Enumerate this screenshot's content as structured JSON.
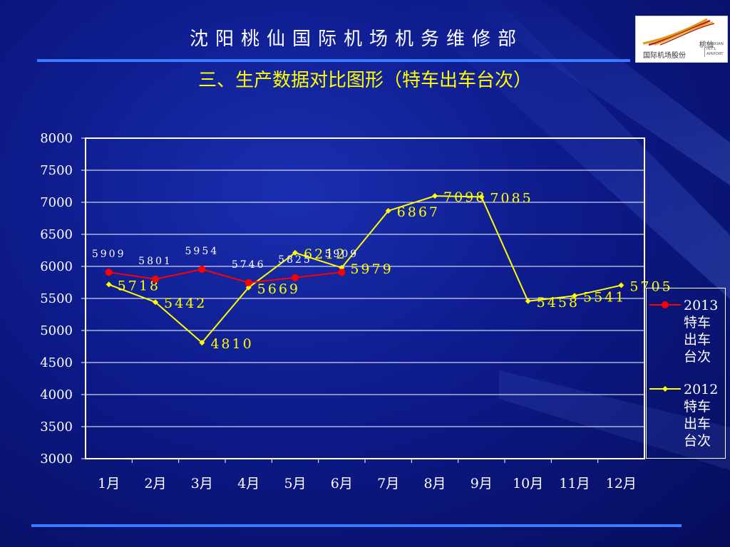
{
  "header": {
    "title": "沈阳桃仙国际机场机务维修部",
    "subtitle": "三、生产数据对比图形（特车出车台次）"
  },
  "logo": {
    "cn_top": "桃仙",
    "cn_bottom": "国际机场股份",
    "en_lines": [
      "TAOXIAN",
      "INT'L",
      "AIRPORT"
    ]
  },
  "colors": {
    "background": "#0d1a8a",
    "rule": "#3a7bff",
    "series_2013": "#ff0000",
    "series_2012": "#ffff00",
    "axis": "#ffffff"
  },
  "chart_data": {
    "type": "line",
    "title": "",
    "xlabel": "",
    "ylabel": "",
    "categories": [
      "1月",
      "2月",
      "3月",
      "4月",
      "5月",
      "6月",
      "7月",
      "8月",
      "9月",
      "10月",
      "11月",
      "12月"
    ],
    "ylim": [
      3000,
      8000
    ],
    "yticks": [
      3000,
      3500,
      4000,
      4500,
      5000,
      5500,
      6000,
      6500,
      7000,
      7500,
      8000
    ],
    "grid": true,
    "legend_position": "right",
    "series": [
      {
        "name": "2013特车出车台次",
        "values": [
          5909,
          5801,
          5954,
          5746,
          5825,
          5909,
          null,
          null,
          null,
          null,
          null,
          null
        ]
      },
      {
        "name": "2012特车出车台次",
        "values": [
          5718,
          5442,
          4810,
          5669,
          6212,
          5979,
          6867,
          7098,
          7085,
          5458,
          5541,
          5705
        ]
      }
    ]
  }
}
